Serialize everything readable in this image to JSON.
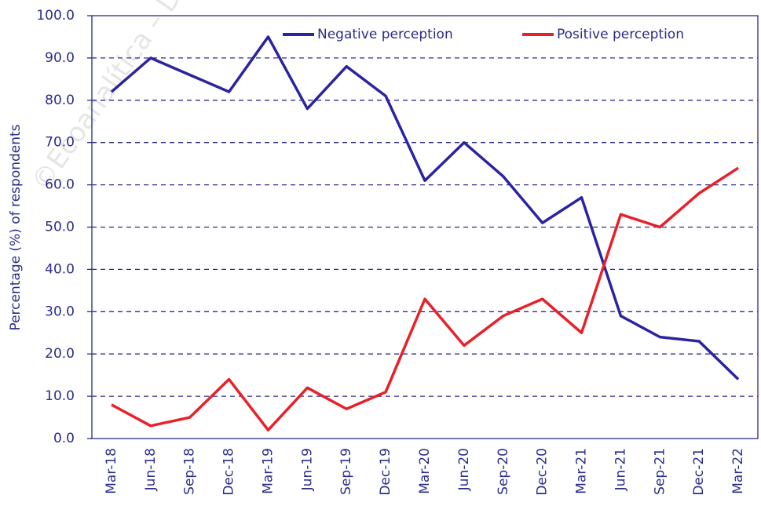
{
  "chart_data": {
    "type": "line",
    "y_label": "Percentage (%) of respondents",
    "watermark": "©Ecoanalítica – Des",
    "categories": [
      "Mar-18",
      "Jun-18",
      "Sep-18",
      "Dec-18",
      "Mar-19",
      "Jun-19",
      "Sep-19",
      "Dec-19",
      "Mar-20",
      "Jun-20",
      "Sep-20",
      "Dec-20",
      "Mar-21",
      "Jun-21",
      "Sep-21",
      "Dec-21",
      "Mar-22"
    ],
    "series": [
      {
        "name": "Negative perception",
        "color": "#2b23a0",
        "values": [
          82,
          90,
          86,
          82,
          95,
          78,
          88,
          81,
          61,
          70,
          62,
          51,
          57,
          29,
          24,
          23,
          14
        ]
      },
      {
        "name": "Positive perception",
        "color": "#e8202a",
        "values": [
          8,
          3,
          5,
          14,
          2,
          12,
          7,
          11,
          33,
          22,
          29,
          33,
          25,
          53,
          50,
          58,
          64
        ]
      }
    ],
    "ylim": [
      0,
      100
    ],
    "yticks": [
      {
        "value": 0,
        "label": "0.0"
      },
      {
        "value": 10,
        "label": "10.0"
      },
      {
        "value": 20,
        "label": "20.0"
      },
      {
        "value": 30,
        "label": "30.0"
      },
      {
        "value": 40,
        "label": "40.0"
      },
      {
        "value": 50,
        "label": "50.0"
      },
      {
        "value": 60,
        "label": "60.0"
      },
      {
        "value": 70,
        "label": "70.0"
      },
      {
        "value": 80,
        "label": "80.0"
      },
      {
        "value": 90,
        "label": "90.0"
      },
      {
        "value": 100,
        "label": "100.0"
      }
    ],
    "grid": true,
    "legend": "top"
  }
}
